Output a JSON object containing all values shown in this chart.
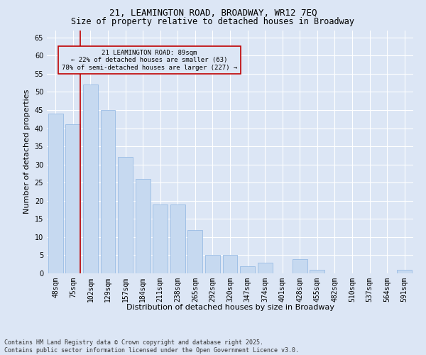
{
  "title": "21, LEAMINGTON ROAD, BROADWAY, WR12 7EQ",
  "subtitle": "Size of property relative to detached houses in Broadway",
  "xlabel": "Distribution of detached houses by size in Broadway",
  "ylabel": "Number of detached properties",
  "bar_color": "#c6d9f0",
  "bar_edge_color": "#8db4e2",
  "categories": [
    "48sqm",
    "75sqm",
    "102sqm",
    "129sqm",
    "157sqm",
    "184sqm",
    "211sqm",
    "238sqm",
    "265sqm",
    "292sqm",
    "320sqm",
    "347sqm",
    "374sqm",
    "401sqm",
    "428sqm",
    "455sqm",
    "482sqm",
    "510sqm",
    "537sqm",
    "564sqm",
    "591sqm"
  ],
  "values": [
    44,
    41,
    52,
    45,
    32,
    26,
    19,
    19,
    12,
    5,
    5,
    2,
    3,
    0,
    4,
    1,
    0,
    0,
    0,
    0,
    1
  ],
  "ylim": [
    0,
    67
  ],
  "yticks": [
    0,
    5,
    10,
    15,
    20,
    25,
    30,
    35,
    40,
    45,
    50,
    55,
    60,
    65
  ],
  "vline_color": "#c00000",
  "annotation_box_text": "21 LEAMINGTON ROAD: 89sqm\n← 22% of detached houses are smaller (63)\n78% of semi-detached houses are larger (227) →",
  "footnote": "Contains HM Land Registry data © Crown copyright and database right 2025.\nContains public sector information licensed under the Open Government Licence v3.0.",
  "background_color": "#dce6f5",
  "grid_color": "#ffffff",
  "title_fontsize": 9,
  "subtitle_fontsize": 8.5,
  "axis_label_fontsize": 8,
  "tick_fontsize": 7,
  "footnote_fontsize": 6
}
